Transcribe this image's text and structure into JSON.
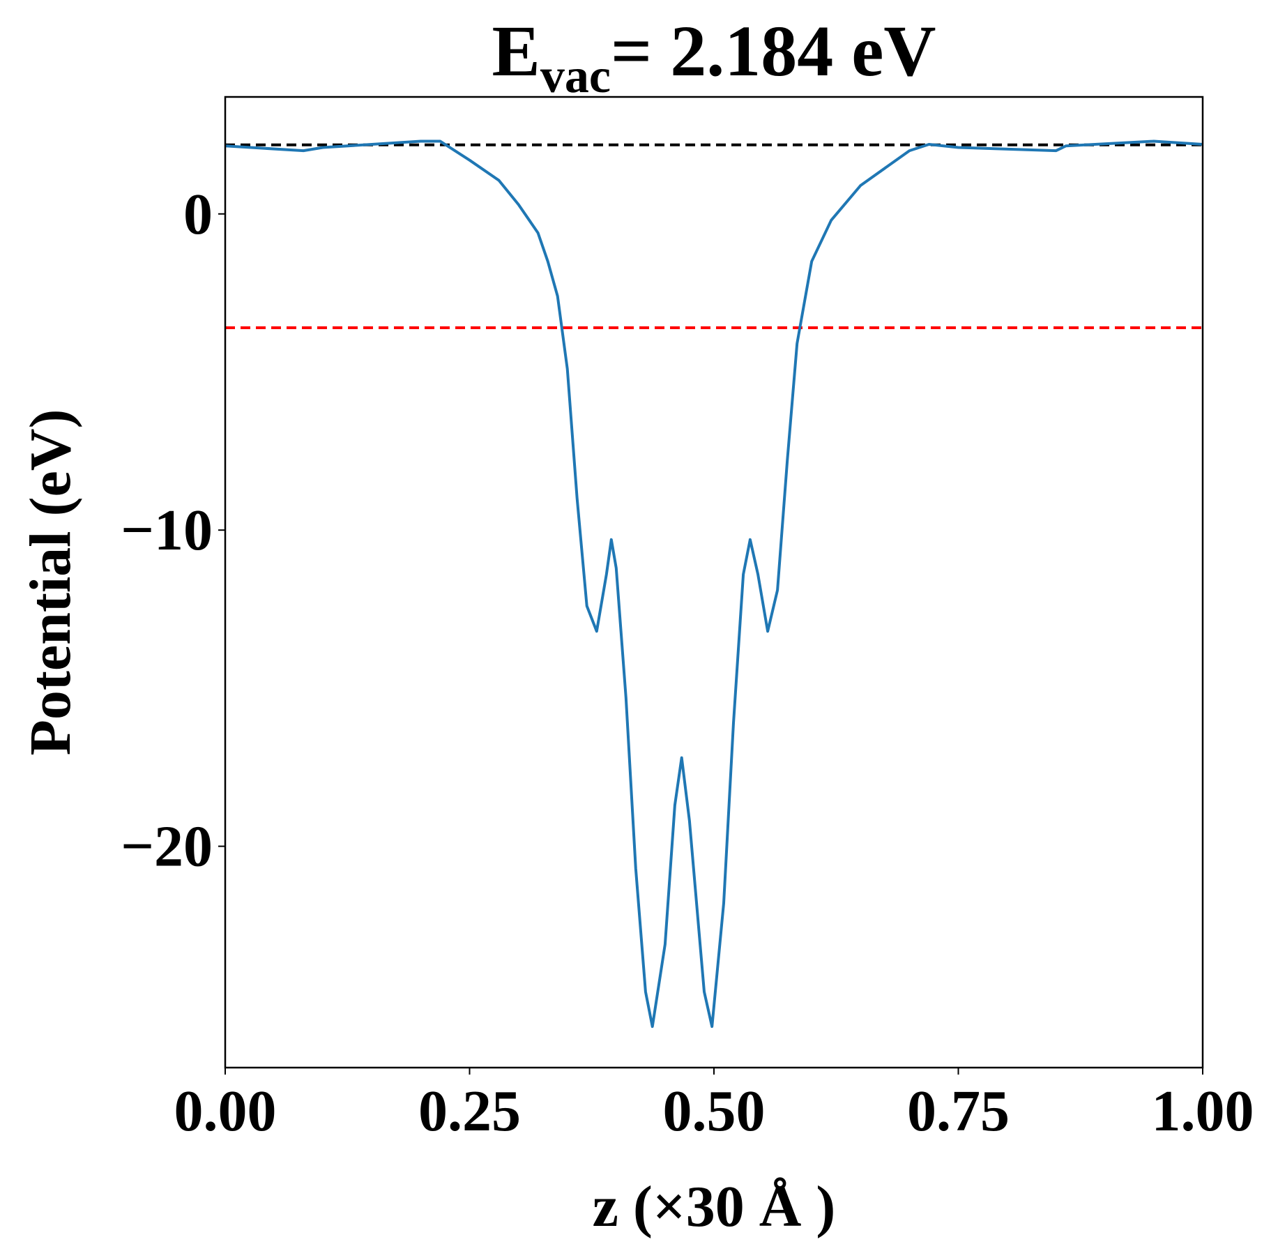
{
  "chart_data": {
    "type": "line",
    "title": {
      "main": "E",
      "subscript": "vac",
      "rest": "= 2.184 eV"
    },
    "x_label": "z (×30 Å )",
    "y_label": "Potential (eV)",
    "x": [
      0,
      0.08,
      0.1,
      0.2,
      0.22,
      0.25,
      0.28,
      0.3,
      0.32,
      0.33,
      0.34,
      0.35,
      0.36,
      0.37,
      0.38,
      0.39,
      0.395,
      0.4,
      0.41,
      0.42,
      0.43,
      0.437,
      0.45,
      0.46,
      0.467,
      0.475,
      0.49,
      0.498,
      0.51,
      0.52,
      0.53,
      0.537,
      0.545,
      0.555,
      0.565,
      0.575,
      0.585,
      0.6,
      0.62,
      0.65,
      0.7,
      0.72,
      0.75,
      0.85,
      0.86,
      0.95,
      1.0
    ],
    "series": [
      {
        "color": "#1f77b4",
        "values": [
          2.15,
          2.0,
          2.1,
          2.3,
          2.3,
          1.7,
          1.06,
          0.3,
          -0.6,
          -1.5,
          -2.6,
          -4.9,
          -9.0,
          -12.4,
          -13.2,
          -11.4,
          -10.3,
          -11.2,
          -15.3,
          -20.7,
          -24.6,
          -25.7,
          -23.1,
          -18.7,
          -17.2,
          -19.2,
          -24.6,
          -25.7,
          -21.8,
          -16.1,
          -11.4,
          -10.3,
          -11.4,
          -13.2,
          -11.9,
          -7.8,
          -4.1,
          -1.5,
          -0.2,
          0.9,
          2.0,
          2.2,
          2.1,
          2.0,
          2.15,
          2.3,
          2.2
        ]
      }
    ],
    "reference_lines": [
      {
        "value": 2.184,
        "color": "#000000"
      },
      {
        "value": -3.6,
        "color": "#ff0000"
      }
    ],
    "xlim": [
      0,
      1
    ],
    "ylim": [
      -27.0,
      3.7
    ],
    "xticks": [
      {
        "value": 0,
        "label": "0.00"
      },
      {
        "value": 0.25,
        "label": "0.25"
      },
      {
        "value": 0.5,
        "label": "0.50"
      },
      {
        "value": 0.75,
        "label": "0.75"
      },
      {
        "value": 1,
        "label": "1.00"
      }
    ],
    "yticks": [
      0,
      {
        "value": -10,
        "label": "−10"
      },
      {
        "value": -20,
        "label": "−20"
      }
    ]
  }
}
